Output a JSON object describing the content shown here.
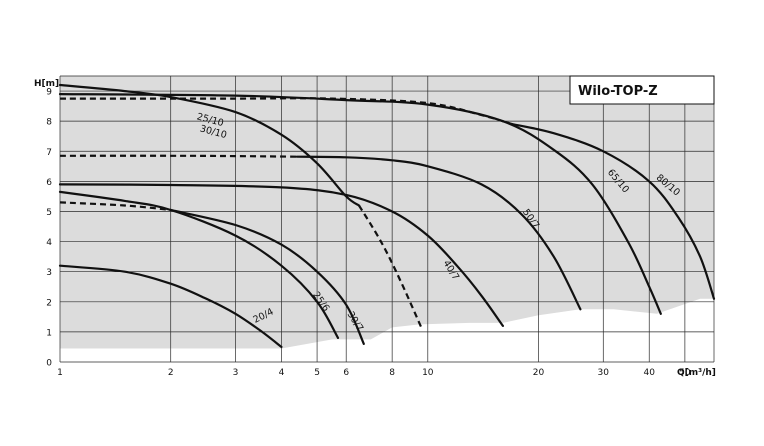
{
  "chart_data": {
    "type": "line",
    "title": "Wilo-TOP-Z",
    "xlabel": "Q[m³/h]",
    "ylabel": "H[m]",
    "x_scale": "log",
    "xlim": [
      1,
      60
    ],
    "ylim": [
      0,
      9.5
    ],
    "grid": true,
    "x_ticks": [
      1,
      2,
      3,
      4,
      5,
      6,
      8,
      10,
      20,
      30,
      40,
      50
    ],
    "y_ticks": [
      0,
      1,
      2,
      3,
      4,
      5,
      6,
      7,
      8,
      9
    ],
    "colors": {
      "curves": "#111111",
      "envelope": "#dcdcdc",
      "grid": "#2a2a2a"
    },
    "envelope": [
      [
        1,
        0.45
      ],
      [
        4,
        0.45
      ],
      [
        5.5,
        0.75
      ],
      [
        7,
        0.75
      ],
      [
        8,
        1.15
      ],
      [
        9.5,
        1.25
      ],
      [
        13,
        1.3
      ],
      [
        16,
        1.3
      ],
      [
        20,
        1.55
      ],
      [
        26,
        1.75
      ],
      [
        32,
        1.75
      ],
      [
        42,
        1.6
      ],
      [
        55,
        2.1
      ],
      [
        60,
        2.1
      ],
      [
        60,
        9.5
      ],
      [
        1,
        9.5
      ]
    ],
    "series": [
      {
        "name": "20/4",
        "dashed": false,
        "label_at": [
          3.6,
          1.45
        ],
        "label_angle": -27,
        "points": [
          [
            1,
            3.2
          ],
          [
            1.5,
            3.0
          ],
          [
            2,
            2.6
          ],
          [
            2.5,
            2.1
          ],
          [
            3,
            1.6
          ],
          [
            3.5,
            1.05
          ],
          [
            4,
            0.5
          ]
        ]
      },
      {
        "name": "25/6",
        "dashed": false,
        "label_at": [
          5.05,
          1.95
        ],
        "label_angle": 55,
        "points": [
          [
            1,
            5.65
          ],
          [
            1.5,
            5.35
          ],
          [
            2,
            5.05
          ],
          [
            3,
            4.2
          ],
          [
            4,
            3.2
          ],
          [
            5,
            2.0
          ],
          [
            5.7,
            0.8
          ]
        ]
      },
      {
        "name": "30/7",
        "dashed": false,
        "label_at": [
          6.25,
          1.3
        ],
        "label_angle": 58,
        "points": [
          [
            2,
            5.05
          ],
          [
            3,
            4.55
          ],
          [
            4,
            3.9
          ],
          [
            5,
            3.0
          ],
          [
            6,
            1.9
          ],
          [
            6.7,
            0.6
          ]
        ]
      },
      {
        "name": "30/7",
        "dashed": true,
        "points": [
          [
            1,
            5.3
          ],
          [
            1.5,
            5.2
          ],
          [
            2,
            5.05
          ]
        ]
      },
      {
        "name": "40/7",
        "dashed": false,
        "label_at": [
          11.4,
          3.0
        ],
        "label_angle": 58,
        "points": [
          [
            1,
            5.9
          ],
          [
            2,
            5.88
          ],
          [
            4,
            5.8
          ],
          [
            6,
            5.55
          ],
          [
            8,
            5.0
          ],
          [
            10,
            4.2
          ],
          [
            12,
            3.2
          ],
          [
            14,
            2.2
          ],
          [
            16,
            1.2
          ]
        ]
      },
      {
        "name": "25/10",
        "dashed": false,
        "label_at": [
          2.55,
          7.95
        ],
        "label_angle": 15,
        "points": [
          [
            1,
            9.2
          ],
          [
            1.5,
            9.0
          ],
          [
            2,
            8.8
          ],
          [
            3,
            8.3
          ],
          [
            4,
            7.55
          ],
          [
            5,
            6.6
          ],
          [
            6,
            5.5
          ],
          [
            6.5,
            5.2
          ]
        ]
      },
      {
        "name": "30/10",
        "dashed": true,
        "label_at": [
          2.6,
          7.55
        ],
        "label_angle": 15,
        "points": [
          [
            6.5,
            5.2
          ],
          [
            7.5,
            3.95
          ],
          [
            8.5,
            2.6
          ],
          [
            9.6,
            1.15
          ]
        ]
      },
      {
        "name": "50/7",
        "dashed": false,
        "label_at": [
          18.8,
          4.7
        ],
        "label_angle": 55,
        "points": [
          [
            4.4,
            6.82
          ],
          [
            6,
            6.8
          ],
          [
            8,
            6.7
          ],
          [
            10,
            6.5
          ],
          [
            14,
            5.9
          ],
          [
            18,
            4.9
          ],
          [
            22,
            3.5
          ],
          [
            26,
            1.75
          ]
        ]
      },
      {
        "name": "50/7",
        "dashed": true,
        "points": [
          [
            1,
            6.85
          ],
          [
            2,
            6.85
          ],
          [
            3,
            6.84
          ],
          [
            4.4,
            6.82
          ]
        ]
      },
      {
        "name": "65/10",
        "dashed": false,
        "label_at": [
          32.5,
          5.95
        ],
        "label_angle": 50,
        "points": [
          [
            1,
            8.9
          ],
          [
            3,
            8.85
          ],
          [
            6,
            8.7
          ],
          [
            10,
            8.55
          ],
          [
            16,
            8.0
          ],
          [
            22,
            7.05
          ],
          [
            28,
            5.9
          ],
          [
            35,
            4.0
          ],
          [
            40,
            2.5
          ],
          [
            43,
            1.6
          ]
        ]
      },
      {
        "name": "65/10",
        "dashed": true,
        "points": [
          [
            1,
            8.75
          ],
          [
            3,
            8.75
          ],
          [
            5.5,
            8.75
          ],
          [
            10,
            8.6
          ],
          [
            14,
            8.2
          ],
          [
            17,
            7.9
          ]
        ]
      },
      {
        "name": "80/10",
        "dashed": false,
        "label_at": [
          44.5,
          5.8
        ],
        "label_angle": 40,
        "points": [
          [
            17,
            7.9
          ],
          [
            22,
            7.6
          ],
          [
            30,
            7.0
          ],
          [
            40,
            6.0
          ],
          [
            48,
            4.8
          ],
          [
            55,
            3.5
          ],
          [
            60,
            2.1
          ]
        ]
      }
    ]
  }
}
